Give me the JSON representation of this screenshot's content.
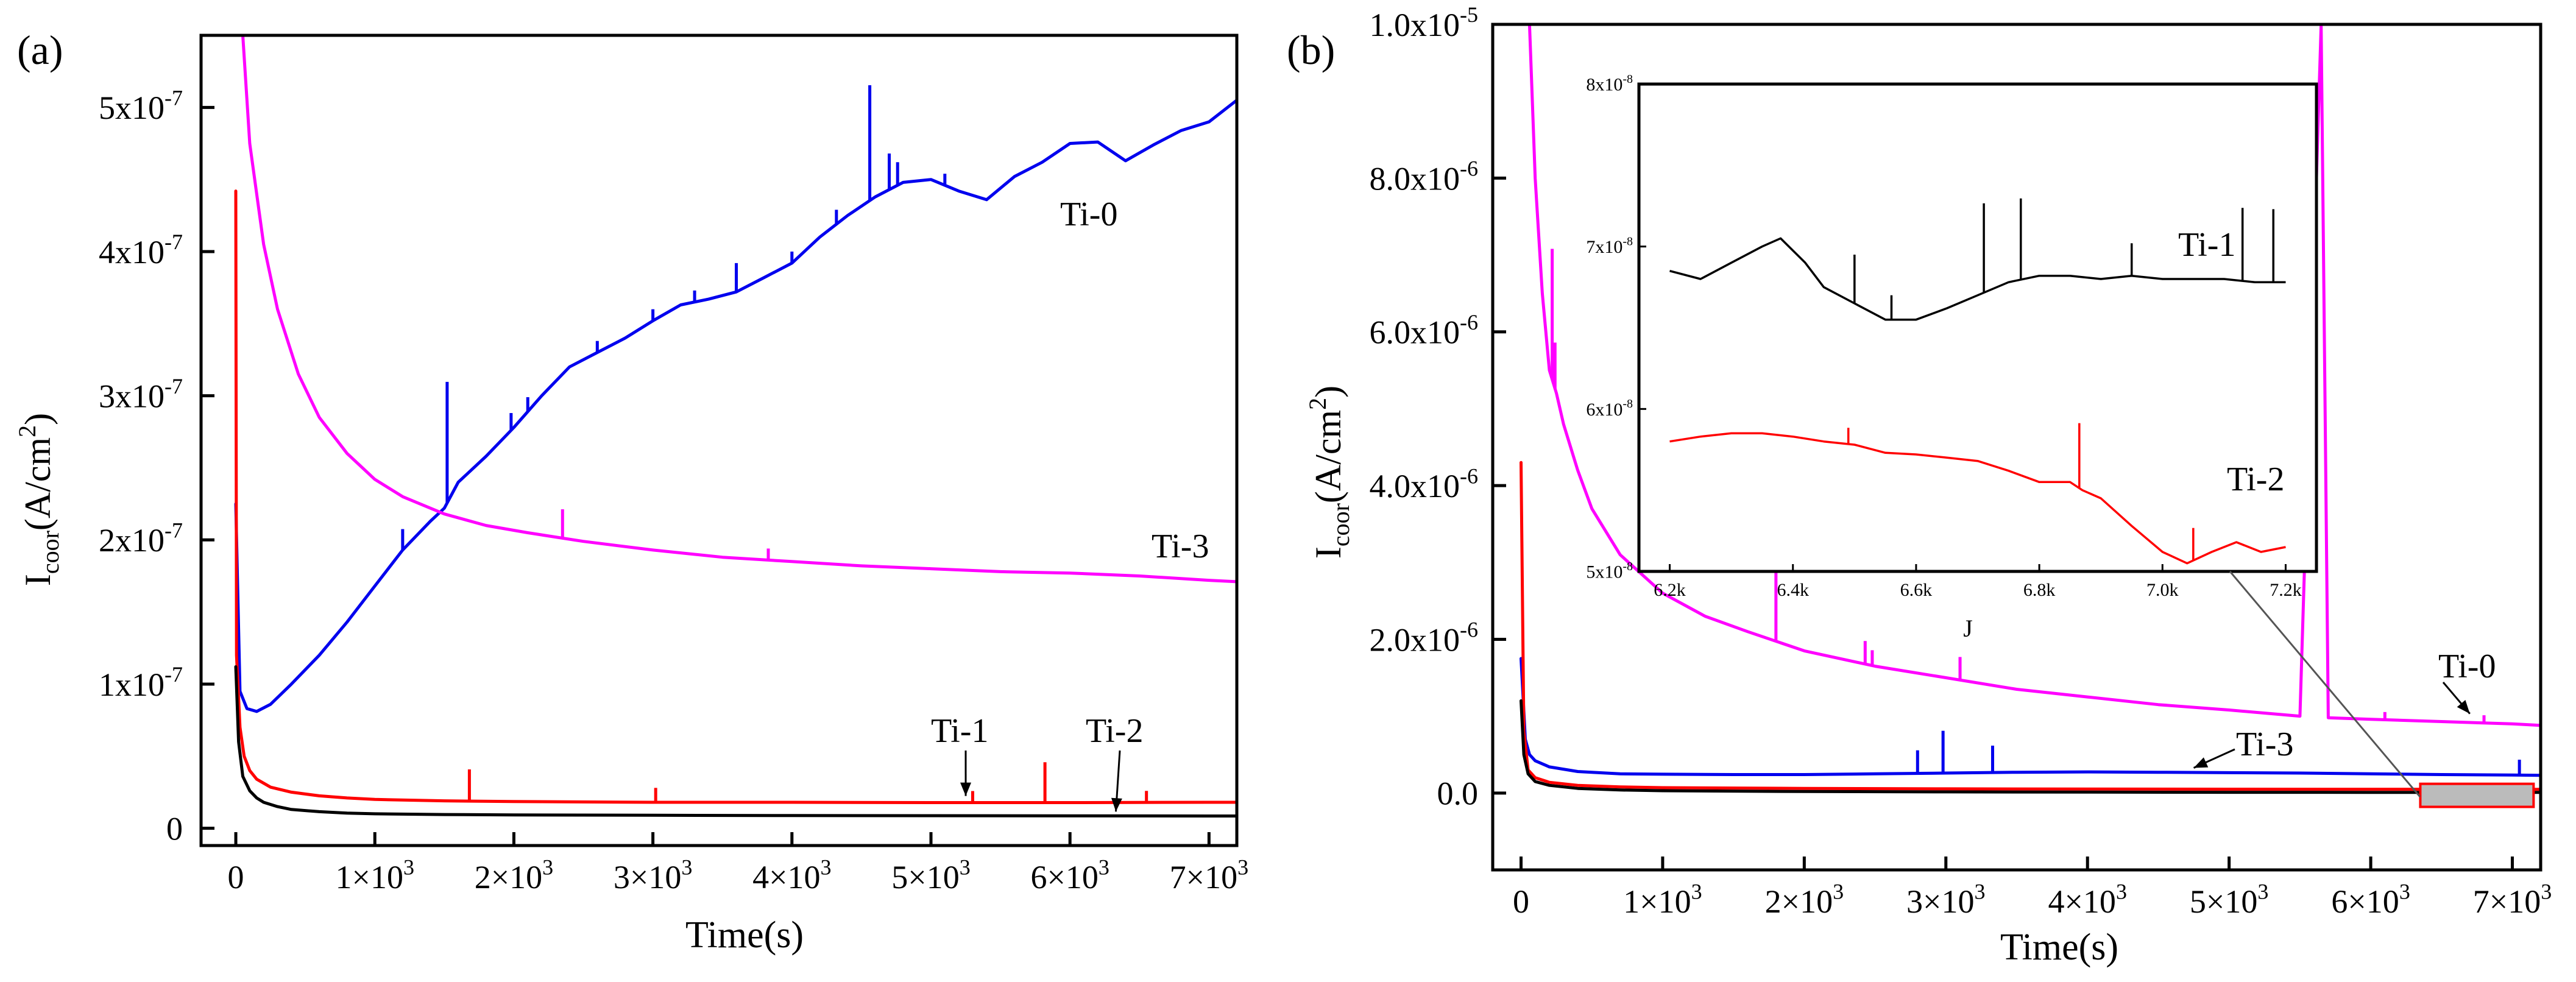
{
  "chart_data": [
    {
      "panel_label": "(a)",
      "type": "line",
      "xlabel": "Time(s)",
      "ylabel": {
        "base": "I",
        "sub": "coor",
        "unit_open": "(A/cm",
        "sup": "2",
        "unit_close": ")"
      },
      "xlim": [
        -250,
        7200
      ],
      "ylim": [
        -1.2e-08,
        5.5e-07
      ],
      "x_ticks": [
        {
          "value": 0,
          "label": "0"
        },
        {
          "value": 1000,
          "mant": "1×10",
          "exp": "3"
        },
        {
          "value": 2000,
          "mant": "2×10",
          "exp": "3"
        },
        {
          "value": 3000,
          "mant": "3×10",
          "exp": "3"
        },
        {
          "value": 4000,
          "mant": "4×10",
          "exp": "3"
        },
        {
          "value": 5000,
          "mant": "5×10",
          "exp": "3"
        },
        {
          "value": 6000,
          "mant": "6×10",
          "exp": "3"
        },
        {
          "value": 7000,
          "mant": "7×10",
          "exp": "3"
        }
      ],
      "y_ticks": [
        {
          "value": 0,
          "label": "0"
        },
        {
          "value": 1e-07,
          "mant": "1x10",
          "exp": "-7"
        },
        {
          "value": 2e-07,
          "mant": "2x10",
          "exp": "-7"
        },
        {
          "value": 3e-07,
          "mant": "3x10",
          "exp": "-7"
        },
        {
          "value": 4e-07,
          "mant": "4x10",
          "exp": "-7"
        },
        {
          "value": 5e-07,
          "mant": "5x10",
          "exp": "-7"
        }
      ],
      "series": [
        {
          "name": "Ti-0",
          "color": "#0000ee",
          "x": [
            0,
            30,
            80,
            150,
            250,
            400,
            600,
            800,
            1000,
            1200,
            1400,
            1500,
            1600,
            1800,
            2000,
            2200,
            2400,
            2600,
            2800,
            3000,
            3200,
            3400,
            3600,
            3800,
            4000,
            4200,
            4400,
            4600,
            4800,
            5000,
            5200,
            5400,
            5600,
            5800,
            6000,
            6200,
            6400,
            6600,
            6800,
            7000,
            7200
          ],
          "y": [
            2.25e-07,
            9.5e-08,
            8.3e-08,
            8.1e-08,
            8.6e-08,
            1e-07,
            1.2e-07,
            1.43e-07,
            1.68e-07,
            1.93e-07,
            2.13e-07,
            2.22e-07,
            2.4e-07,
            2.58e-07,
            2.78e-07,
            3e-07,
            3.2e-07,
            3.3e-07,
            3.4e-07,
            3.52e-07,
            3.63e-07,
            3.67e-07,
            3.72e-07,
            3.82e-07,
            3.92e-07,
            4.1e-07,
            4.25e-07,
            4.38e-07,
            4.48e-07,
            4.5e-07,
            4.42e-07,
            4.36e-07,
            4.52e-07,
            4.62e-07,
            4.75e-07,
            4.76e-07,
            4.63e-07,
            4.74e-07,
            4.84e-07,
            4.9e-07,
            5.05e-07
          ],
          "spikes": [
            [
              1200,
              1.45e-08
            ],
            [
              1520,
              8.4e-08
            ],
            [
              1980,
              1.2e-08
            ],
            [
              2100,
              1e-08
            ],
            [
              2600,
              8e-09
            ],
            [
              3000,
              8e-09
            ],
            [
              3300,
              8e-09
            ],
            [
              3600,
              2e-08
            ],
            [
              4000,
              8e-09
            ],
            [
              4320,
              1e-08
            ],
            [
              4560,
              8e-08
            ],
            [
              4700,
              2.5e-08
            ],
            [
              4760,
              1.6e-08
            ],
            [
              5100,
              8e-09
            ]
          ]
        },
        {
          "name": "Ti-3",
          "color": "#ff00ff",
          "x": [
            50,
            100,
            200,
            300,
            450,
            600,
            800,
            1000,
            1200,
            1500,
            1800,
            2100,
            2500,
            3000,
            3500,
            4000,
            4500,
            5000,
            5500,
            6000,
            6500,
            7000,
            7200
          ],
          "y": [
            5.5e-07,
            4.75e-07,
            4.05e-07,
            3.6e-07,
            3.15e-07,
            2.85e-07,
            2.6e-07,
            2.42e-07,
            2.3e-07,
            2.18e-07,
            2.1e-07,
            2.05e-07,
            1.99e-07,
            1.93e-07,
            1.88e-07,
            1.85e-07,
            1.82e-07,
            1.8e-07,
            1.78e-07,
            1.77e-07,
            1.75e-07,
            1.72e-07,
            1.71e-07
          ],
          "spikes": [
            [
              2350,
              2e-08
            ],
            [
              3830,
              8e-09
            ]
          ]
        },
        {
          "name": "Ti-1",
          "color": "#ff0000",
          "x": [
            0,
            5,
            30,
            60,
            100,
            150,
            250,
            400,
            600,
            800,
            1000,
            1500,
            2000,
            3000,
            4000,
            5000,
            6000,
            7000,
            7200
          ],
          "y": [
            4.42e-07,
            1.2e-07,
            7e-08,
            5e-08,
            4e-08,
            3.4e-08,
            2.85e-08,
            2.5e-08,
            2.25e-08,
            2.1e-08,
            2e-08,
            1.9e-08,
            1.85e-08,
            1.8e-08,
            1.8e-08,
            1.78e-08,
            1.78e-08,
            1.8e-08,
            1.8e-08
          ],
          "spikes": [
            [
              1680,
              2.2e-08
            ],
            [
              3020,
              1e-08
            ],
            [
              5300,
              8e-09
            ],
            [
              5820,
              2.8e-08
            ],
            [
              6550,
              8e-09
            ]
          ]
        },
        {
          "name": "Ti-2",
          "color": "#000000",
          "x": [
            0,
            20,
            50,
            100,
            150,
            200,
            300,
            400,
            600,
            800,
            1000,
            1500,
            2000,
            3000,
            4000,
            5000,
            6000,
            7000,
            7200
          ],
          "y": [
            1.12e-07,
            6e-08,
            3.6e-08,
            2.6e-08,
            2.1e-08,
            1.8e-08,
            1.5e-08,
            1.3e-08,
            1.15e-08,
            1.05e-08,
            1e-08,
            9.5e-09,
            9.2e-09,
            9e-09,
            8.8e-09,
            8.7e-09,
            8.6e-09,
            8.5e-09,
            8.5e-09
          ],
          "spikes": []
        }
      ],
      "annotations": [
        {
          "text": "Ti-0",
          "color": "#000000"
        },
        {
          "text": "Ti-3",
          "color": "#000000"
        },
        {
          "text": "Ti-1",
          "color": "#000000",
          "arrow_to": [
            5250,
            1.9e-08
          ]
        },
        {
          "text": "Ti-2",
          "color": "#000000",
          "arrow_to": [
            6330,
            9e-09
          ]
        }
      ]
    },
    {
      "panel_label": "(b)",
      "type": "line",
      "xlabel": "Time(s)",
      "ylabel": {
        "base": "I",
        "sub": "coor",
        "unit_open": "(A/cm",
        "sup": "2",
        "unit_close": ")"
      },
      "xlim": [
        -200,
        7200
      ],
      "ylim": [
        -1e-06,
        1e-05
      ],
      "x_ticks": [
        {
          "value": 0,
          "label": "0"
        },
        {
          "value": 1000,
          "mant": "1×10",
          "exp": "3"
        },
        {
          "value": 2000,
          "mant": "2×10",
          "exp": "3"
        },
        {
          "value": 3000,
          "mant": "3×10",
          "exp": "3"
        },
        {
          "value": 4000,
          "mant": "4×10",
          "exp": "3"
        },
        {
          "value": 5000,
          "mant": "5×10",
          "exp": "3"
        },
        {
          "value": 6000,
          "mant": "6×10",
          "exp": "3"
        },
        {
          "value": 7000,
          "mant": "7×10",
          "exp": "3"
        }
      ],
      "y_ticks": [
        {
          "value": 0,
          "label": "0.0"
        },
        {
          "value": 2e-06,
          "mant": "2.0x10",
          "exp": "-6"
        },
        {
          "value": 4e-06,
          "mant": "4.0x10",
          "exp": "-6"
        },
        {
          "value": 6e-06,
          "mant": "6.0x10",
          "exp": "-6"
        },
        {
          "value": 8e-06,
          "mant": "8.0x10",
          "exp": "-6"
        },
        {
          "value": 1e-05,
          "mant": "1.0x10",
          "exp": "-5"
        }
      ],
      "series": [
        {
          "name": "Ti-0",
          "color": "#ff00ff",
          "x": [
            60,
            100,
            150,
            200,
            250,
            300,
            400,
            500,
            700,
            1000,
            1300,
            1600,
            2000,
            2500,
            3000,
            3500,
            4000,
            4500,
            5000,
            5500,
            5650,
            5700,
            6000,
            6500,
            7000,
            7200
          ],
          "y": [
            1e-05,
            8e-06,
            6.5e-06,
            5.5e-06,
            5.2e-06,
            4.8e-06,
            4.2e-06,
            3.7e-06,
            3.1e-06,
            2.6e-06,
            2.3e-06,
            2.1e-06,
            1.85e-06,
            1.65e-06,
            1.5e-06,
            1.35e-06,
            1.25e-06,
            1.15e-06,
            1.08e-06,
            1e-06,
            1e-05,
            9.8e-07,
            9.6e-07,
            9.3e-07,
            9e-07,
            8.8e-07
          ],
          "spikes": [
            [
              220,
              1.7e-06
            ],
            [
              240,
              6e-07
            ],
            [
              1800,
              1.55e-06
            ],
            [
              2430,
              3e-07
            ],
            [
              2480,
              2e-07
            ],
            [
              3100,
              3e-07
            ],
            [
              6100,
              1e-07
            ],
            [
              6800,
              1e-07
            ]
          ]
        },
        {
          "name": "Ti-3",
          "color": "#0000ee",
          "x": [
            0,
            30,
            60,
            100,
            200,
            400,
            700,
            1000,
            1500,
            2000,
            2500,
            3000,
            3500,
            4000,
            4500,
            5000,
            5500,
            6000,
            6500,
            7000,
            7200
          ],
          "y": [
            1.75e-06,
            7e-07,
            5e-07,
            4.2e-07,
            3.4e-07,
            2.8e-07,
            2.5e-07,
            2.45e-07,
            2.4e-07,
            2.4e-07,
            2.5e-07,
            2.6e-07,
            2.7e-07,
            2.75e-07,
            2.7e-07,
            2.65e-07,
            2.6e-07,
            2.5e-07,
            2.4e-07,
            2.35e-07,
            2.3e-07
          ],
          "spikes": [
            [
              2800,
              3e-07
            ],
            [
              2980,
              5.5e-07
            ],
            [
              3330,
              3.5e-07
            ],
            [
              7050,
              2e-07
            ]
          ]
        },
        {
          "name": "Ti-1",
          "color": "#ff0000",
          "x": [
            0,
            20,
            50,
            100,
            200,
            400,
            700,
            1000,
            2000,
            3000,
            4000,
            5000,
            6000,
            7000,
            7200
          ],
          "y": [
            4.3e-06,
            8e-07,
            3e-07,
            2e-07,
            1.4e-07,
            1e-07,
            8e-08,
            7e-08,
            6e-08,
            5.5e-08,
            5.2e-08,
            5e-08,
            4.9e-08,
            4.8e-08,
            4.8e-08
          ],
          "spikes": []
        },
        {
          "name": "Ti-2",
          "color": "#000000",
          "x": [
            0,
            20,
            50,
            100,
            200,
            400,
            700,
            1000,
            2000,
            3000,
            4000,
            5000,
            6000,
            7000,
            7200
          ],
          "y": [
            1.2e-06,
            5e-07,
            2.5e-07,
            1.5e-07,
            1e-07,
            6e-08,
            4e-08,
            3e-08,
            2e-08,
            1.5e-08,
            1.2e-08,
            1e-08,
            9e-09,
            8e-09,
            8e-09
          ],
          "spikes": []
        }
      ],
      "annotations": [
        {
          "text": "Ti-0",
          "color": "#000000",
          "arrow_to": [
            6700,
            1e-06
          ]
        },
        {
          "text": "Ti-3",
          "color": "#000000",
          "arrow_to": [
            4750,
            2.8e-07
          ]
        }
      ],
      "highlight_region": {
        "x": [
          6350,
          7150
        ],
        "y": [
          -1.8e-07,
          1.2e-07
        ],
        "fill": "#bbbbbb",
        "stroke": "#ff0000"
      },
      "inset": {
        "xlabel": "J",
        "xlim": [
          6150,
          7250
        ],
        "ylim": [
          5e-08,
          8e-08
        ],
        "x_ticks": [
          {
            "value": 6200,
            "label": "6.2k"
          },
          {
            "value": 6400,
            "label": "6.4k"
          },
          {
            "value": 6600,
            "label": "6.6k"
          },
          {
            "value": 6800,
            "label": "6.8k"
          },
          {
            "value": 7000,
            "label": "7.0k"
          },
          {
            "value": 7200,
            "label": "7.2k"
          }
        ],
        "y_ticks": [
          {
            "value": 5e-08,
            "mant": "5x10",
            "exp": "-8"
          },
          {
            "value": 6e-08,
            "mant": "6x10",
            "exp": "-8"
          },
          {
            "value": 7e-08,
            "mant": "7x10",
            "exp": "-8"
          },
          {
            "value": 8e-08,
            "mant": "8x10",
            "exp": "-8"
          }
        ],
        "series": [
          {
            "name": "Ti-1",
            "color": "#000000",
            "x": [
              6200,
              6250,
              6300,
              6350,
              6380,
              6420,
              6450,
              6500,
              6550,
              6600,
              6650,
              6700,
              6750,
              6800,
              6850,
              6900,
              6950,
              7000,
              7050,
              7100,
              7150,
              7200
            ],
            "y": [
              6.85e-08,
              6.8e-08,
              6.9e-08,
              7e-08,
              7.05e-08,
              6.9e-08,
              6.75e-08,
              6.65e-08,
              6.55e-08,
              6.55e-08,
              6.62e-08,
              6.7e-08,
              6.78e-08,
              6.82e-08,
              6.82e-08,
              6.8e-08,
              6.82e-08,
              6.8e-08,
              6.8e-08,
              6.8e-08,
              6.78e-08,
              6.78e-08
            ],
            "spikes": [
              [
                6500,
                3e-09
              ],
              [
                6560,
                1.5e-09
              ],
              [
                6710,
                5.5e-09
              ],
              [
                6770,
                5e-09
              ],
              [
                6950,
                2e-09
              ],
              [
                7130,
                4.5e-09
              ],
              [
                7180,
                4.5e-09
              ]
            ]
          },
          {
            "name": "Ti-2",
            "color": "#ff0000",
            "x": [
              6200,
              6250,
              6300,
              6350,
              6400,
              6450,
              6500,
              6550,
              6600,
              6650,
              6700,
              6750,
              6800,
              6850,
              6870,
              6900,
              6950,
              7000,
              7040,
              7080,
              7120,
              7160,
              7200
            ],
            "y": [
              5.8e-08,
              5.83e-08,
              5.85e-08,
              5.85e-08,
              5.83e-08,
              5.8e-08,
              5.78e-08,
              5.73e-08,
              5.72e-08,
              5.7e-08,
              5.68e-08,
              5.62e-08,
              5.55e-08,
              5.55e-08,
              5.5e-08,
              5.45e-08,
              5.28e-08,
              5.12e-08,
              5.05e-08,
              5.12e-08,
              5.18e-08,
              5.12e-08,
              5.15e-08
            ],
            "spikes": [
              [
                6490,
                1e-09
              ],
              [
                6865,
                4e-09
              ],
              [
                7050,
                2e-09
              ]
            ]
          }
        ]
      }
    }
  ]
}
